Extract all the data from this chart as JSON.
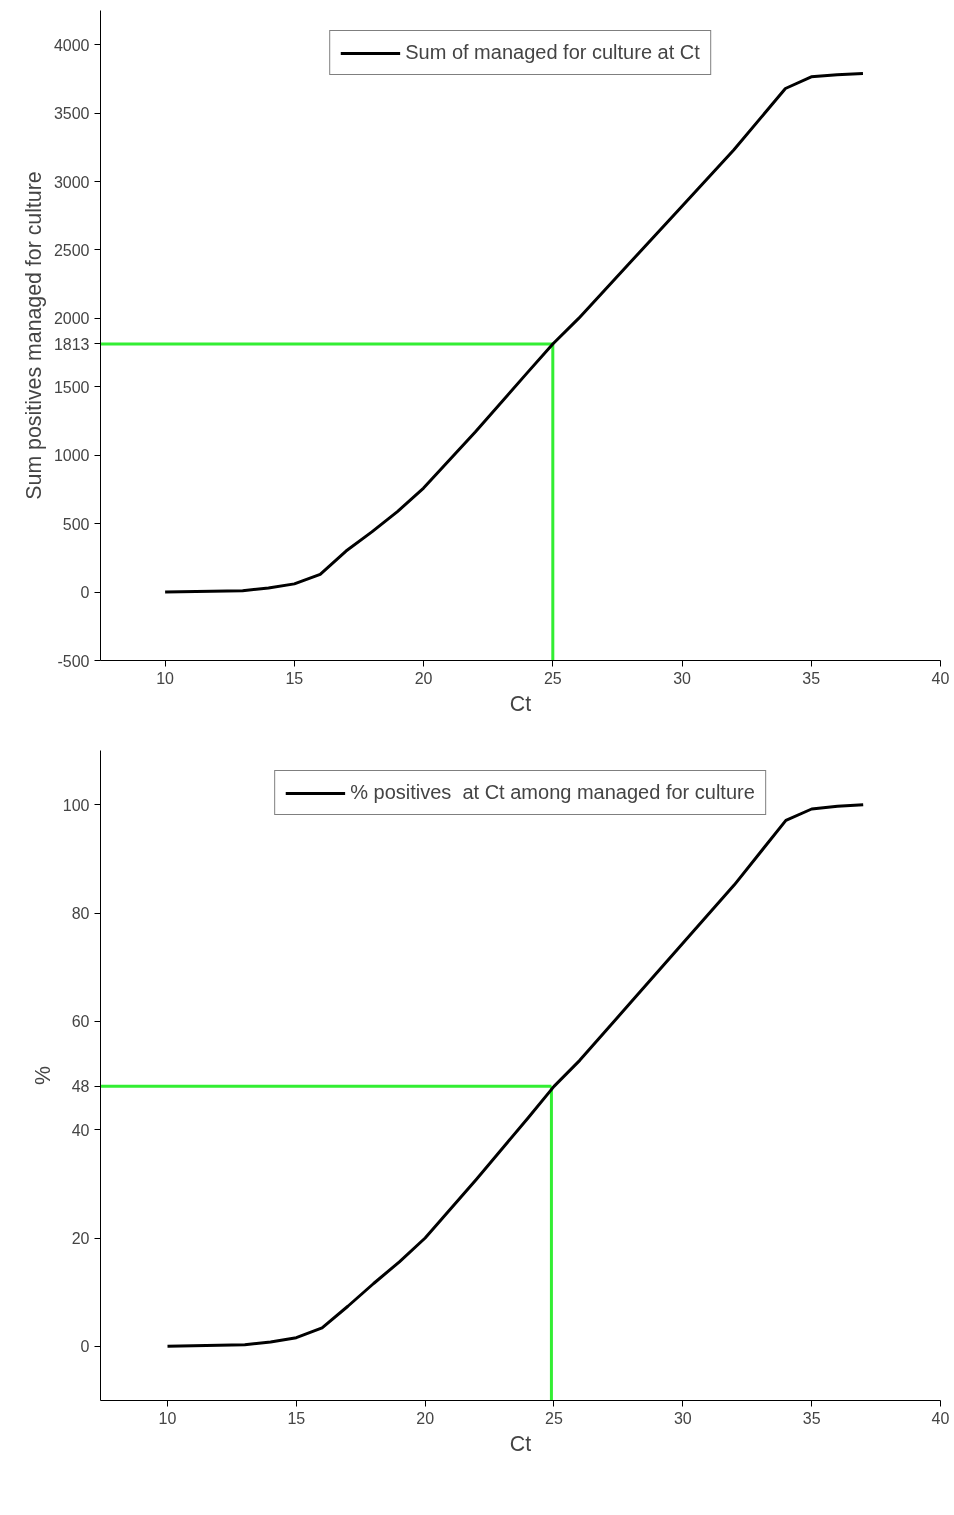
{
  "chart_data": [
    {
      "type": "line",
      "xlabel": "Ct",
      "ylabel": "Sum positives managed for culture",
      "legend": "top",
      "x": [
        10,
        13,
        14,
        15,
        16,
        17,
        18,
        19,
        20,
        22,
        24,
        25,
        26,
        28,
        30,
        32,
        34,
        35,
        36,
        37
      ],
      "series": [
        {
          "name": "Sum of managed for culture at Ct",
          "color": "#000000",
          "values": [
            0,
            10,
            30,
            60,
            130,
            300,
            440,
            590,
            760,
            1170,
            1600,
            1813,
            2000,
            2410,
            2820,
            3230,
            3680,
            3765,
            3780,
            3790
          ]
        }
      ],
      "xlim": [
        7.5,
        40
      ],
      "xticks": [
        10,
        15,
        20,
        25,
        30,
        35,
        40
      ],
      "ylim": [
        -500,
        4250
      ],
      "yticks": [
        -500,
        0,
        500,
        1000,
        1500,
        {
          "value": 1813,
          "label": "1813"
        },
        2000,
        2500,
        3000,
        3500,
        4000
      ],
      "ref_lines": [
        {
          "axis": "x",
          "value": 25,
          "color": "#33ee33"
        },
        {
          "axis": "y",
          "value": 1813,
          "color": "#33ee33"
        }
      ],
      "grid": false,
      "line_style": "solid",
      "marker": "none"
    },
    {
      "type": "line",
      "xlabel": "Ct",
      "ylabel": "%",
      "legend": "top",
      "x": [
        10,
        13,
        14,
        15,
        16,
        17,
        18,
        19,
        20,
        22,
        24,
        25,
        26,
        28,
        30,
        32,
        34,
        35,
        36,
        37
      ],
      "series": [
        {
          "name": "% positives  at Ct among managed for culture",
          "color": "#000000",
          "values": [
            0,
            0.3,
            0.8,
            1.6,
            3.4,
            7.4,
            11.6,
            15.6,
            20,
            30.9,
            42.2,
            48,
            52.8,
            63.6,
            74.4,
            85.2,
            97.1,
            99.2,
            99.7,
            100
          ]
        }
      ],
      "xlim": [
        7.4,
        40
      ],
      "xticks": [
        10,
        15,
        20,
        25,
        30,
        35,
        40
      ],
      "ylim": [
        -10,
        110
      ],
      "yticks": [
        0,
        20,
        40,
        {
          "value": 48,
          "label": "48"
        },
        60,
        80,
        100
      ],
      "ref_lines": [
        {
          "axis": "x",
          "value": 24.9,
          "color": "#33ee33"
        },
        {
          "axis": "y",
          "value": 48,
          "color": "#33ee33"
        }
      ],
      "grid": false,
      "line_style": "solid",
      "marker": "none"
    }
  ]
}
